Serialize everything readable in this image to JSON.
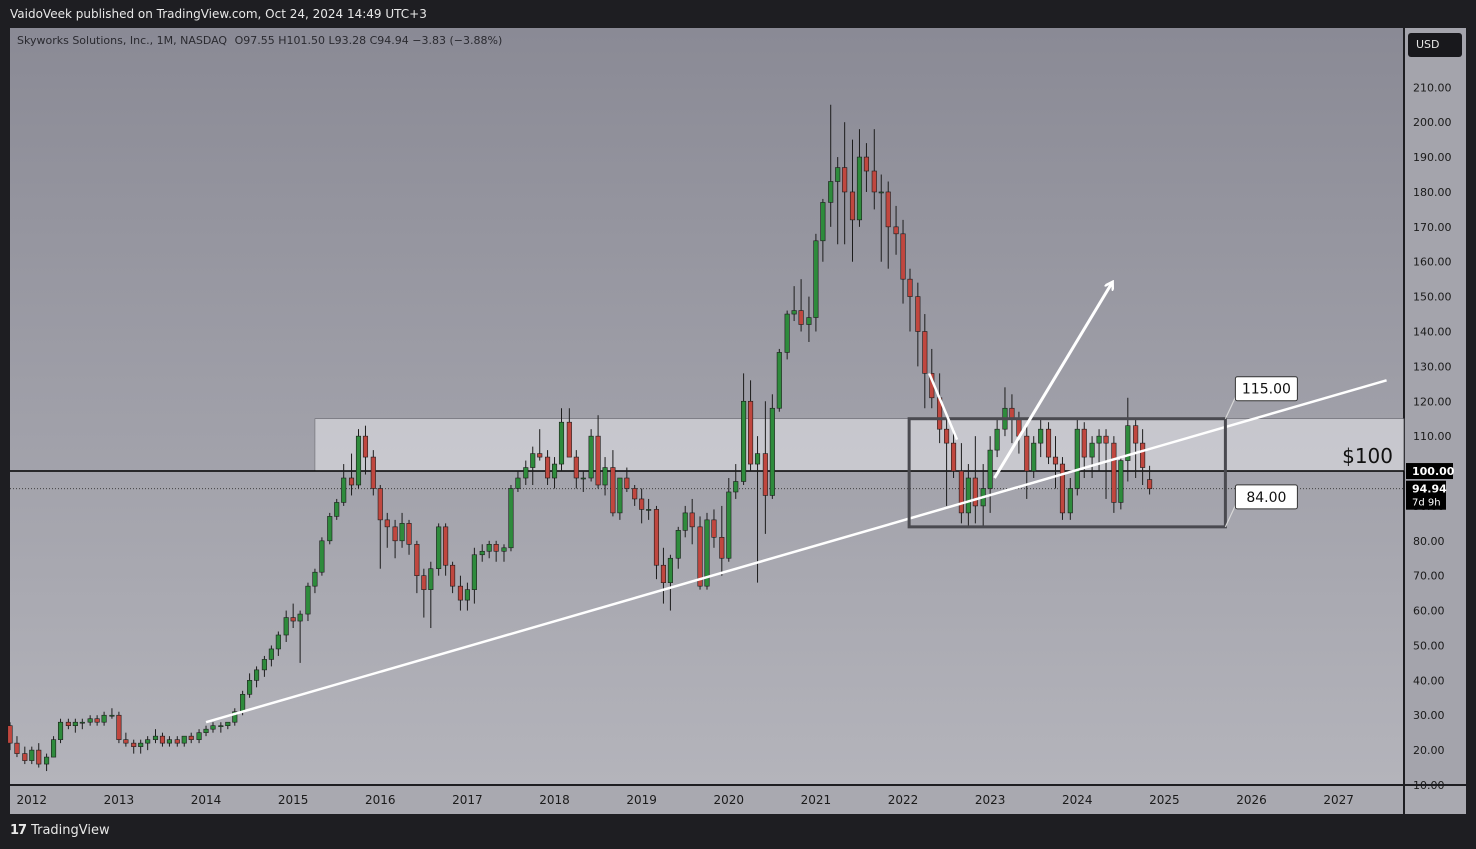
{
  "header": {
    "published_text": "VaidoVeek published on TradingView.com, Oct 24, 2024 14:49 UTC+3"
  },
  "footer": {
    "logo_mark": "17",
    "logo_text": "TradingView"
  },
  "currency_button": "USD",
  "legend": {
    "symbol": "Skyworks Solutions, Inc., 1M, NASDAQ",
    "ohlc_text": "O97.55  H101.50  L93.28  C94.94  −3.83 (−3.88%)"
  },
  "colors": {
    "up": "#2e8b3c",
    "down": "#c0473f",
    "background_top": "#8a8a95",
    "background_bottom": "#b4b4bb",
    "frame": "#1e1e22",
    "annotation": "#ffffff",
    "level_line": "#000000",
    "range_box": "#4a4a50"
  },
  "chart_data": {
    "type": "candlestick",
    "ylim": [
      10,
      227
    ],
    "xlim": [
      2011.75,
      2027.75
    ],
    "y_ticks": [
      "210.00",
      "200.00",
      "190.00",
      "180.00",
      "170.00",
      "160.00",
      "150.00",
      "140.00",
      "130.00",
      "120.00",
      "110.00",
      "100.00",
      "90.00",
      "80.00",
      "70.00",
      "60.00",
      "50.00",
      "40.00",
      "30.00",
      "20.00",
      "10.00"
    ],
    "x_ticks": [
      "2012",
      "2013",
      "2014",
      "2015",
      "2016",
      "2017",
      "2018",
      "2019",
      "2020",
      "2021",
      "2022",
      "2023",
      "2024",
      "2025",
      "2026",
      "2027"
    ],
    "series": [
      {
        "values": [
          [
            2011.75,
            27,
            28,
            20,
            22
          ],
          [
            2011.83,
            22,
            24,
            18,
            19
          ],
          [
            2011.92,
            19,
            21,
            16,
            17
          ],
          [
            2012.0,
            17,
            21,
            16,
            20
          ],
          [
            2012.08,
            20,
            22,
            15,
            16
          ],
          [
            2012.17,
            16,
            19,
            14,
            18
          ],
          [
            2012.25,
            18,
            24,
            18,
            23
          ],
          [
            2012.33,
            23,
            29,
            22,
            28
          ],
          [
            2012.42,
            28,
            29,
            26,
            27
          ],
          [
            2012.5,
            27,
            29,
            25,
            28
          ],
          [
            2012.58,
            28,
            29,
            26,
            28
          ],
          [
            2012.67,
            28,
            30,
            27,
            29
          ],
          [
            2012.75,
            29,
            30,
            27,
            28
          ],
          [
            2012.83,
            28,
            31,
            27,
            30
          ],
          [
            2012.92,
            30,
            32,
            29,
            30
          ],
          [
            2013.0,
            30,
            31,
            22,
            23
          ],
          [
            2013.08,
            23,
            25,
            21,
            22
          ],
          [
            2013.17,
            22,
            23,
            19,
            21
          ],
          [
            2013.25,
            21,
            23,
            19,
            22
          ],
          [
            2013.33,
            22,
            24,
            20,
            23
          ],
          [
            2013.42,
            23,
            26,
            22,
            24
          ],
          [
            2013.5,
            24,
            25,
            21,
            22
          ],
          [
            2013.58,
            22,
            24,
            21,
            23
          ],
          [
            2013.67,
            23,
            24,
            21,
            22
          ],
          [
            2013.75,
            22,
            24,
            21,
            24
          ],
          [
            2013.83,
            24,
            25,
            22,
            23
          ],
          [
            2013.92,
            23,
            26,
            22,
            25
          ],
          [
            2014.0,
            25,
            27,
            24,
            26
          ],
          [
            2014.08,
            26,
            28,
            25,
            27
          ],
          [
            2014.17,
            27,
            28,
            25,
            27
          ],
          [
            2014.25,
            27,
            28,
            26,
            28
          ],
          [
            2014.33,
            28,
            32,
            27,
            31
          ],
          [
            2014.42,
            31,
            37,
            30,
            36
          ],
          [
            2014.5,
            36,
            42,
            35,
            40
          ],
          [
            2014.58,
            40,
            44,
            38,
            43
          ],
          [
            2014.67,
            43,
            47,
            41,
            46
          ],
          [
            2014.75,
            46,
            50,
            44,
            49
          ],
          [
            2014.83,
            49,
            54,
            47,
            53
          ],
          [
            2014.92,
            53,
            60,
            51,
            58
          ],
          [
            2015.0,
            58,
            62,
            55,
            57
          ],
          [
            2015.08,
            57,
            60,
            45,
            59
          ],
          [
            2015.17,
            59,
            68,
            57,
            67
          ],
          [
            2015.25,
            67,
            72,
            65,
            71
          ],
          [
            2015.33,
            71,
            81,
            70,
            80
          ],
          [
            2015.42,
            80,
            88,
            79,
            87
          ],
          [
            2015.5,
            87,
            92,
            86,
            91
          ],
          [
            2015.58,
            91,
            102,
            90,
            98
          ],
          [
            2015.67,
            98,
            105,
            93,
            96
          ],
          [
            2015.75,
            96,
            112,
            95,
            110
          ],
          [
            2015.83,
            110,
            113,
            99,
            104
          ],
          [
            2015.92,
            104,
            106,
            93,
            95
          ],
          [
            2016.0,
            95,
            96,
            72,
            86
          ],
          [
            2016.08,
            86,
            88,
            78,
            84
          ],
          [
            2016.17,
            84,
            86,
            75,
            80
          ],
          [
            2016.25,
            80,
            88,
            78,
            85
          ],
          [
            2016.33,
            85,
            86,
            76,
            79
          ],
          [
            2016.42,
            79,
            80,
            65,
            70
          ],
          [
            2016.5,
            70,
            72,
            58,
            66
          ],
          [
            2016.58,
            66,
            74,
            55,
            72
          ],
          [
            2016.67,
            72,
            85,
            70,
            84
          ],
          [
            2016.75,
            84,
            85,
            70,
            73
          ],
          [
            2016.83,
            73,
            74,
            65,
            67
          ],
          [
            2016.92,
            67,
            70,
            60,
            63
          ],
          [
            2017.0,
            63,
            68,
            60,
            66
          ],
          [
            2017.08,
            66,
            78,
            62,
            76
          ],
          [
            2017.17,
            76,
            79,
            74,
            77
          ],
          [
            2017.25,
            77,
            80,
            75,
            79
          ],
          [
            2017.33,
            79,
            80,
            74,
            77
          ],
          [
            2017.42,
            77,
            79,
            74,
            78
          ],
          [
            2017.5,
            78,
            96,
            77,
            95
          ],
          [
            2017.58,
            95,
            100,
            94,
            98
          ],
          [
            2017.67,
            98,
            103,
            96,
            101
          ],
          [
            2017.75,
            101,
            107,
            96,
            105
          ],
          [
            2017.83,
            105,
            112,
            103,
            104
          ],
          [
            2017.92,
            104,
            106,
            96,
            98
          ],
          [
            2018.0,
            98,
            104,
            95,
            102
          ],
          [
            2018.08,
            102,
            118,
            100,
            114
          ],
          [
            2018.17,
            114,
            118,
            106,
            104
          ],
          [
            2018.25,
            104,
            106,
            95,
            98
          ],
          [
            2018.33,
            98,
            100,
            94,
            98
          ],
          [
            2018.42,
            98,
            112,
            97,
            110
          ],
          [
            2018.5,
            110,
            116,
            95,
            96
          ],
          [
            2018.58,
            96,
            104,
            93,
            101
          ],
          [
            2018.67,
            101,
            106,
            87,
            88
          ],
          [
            2018.75,
            88,
            98,
            86,
            98
          ],
          [
            2018.83,
            98,
            101,
            94,
            95
          ],
          [
            2018.92,
            95,
            96,
            90,
            92
          ],
          [
            2019.0,
            92,
            95,
            85,
            89
          ],
          [
            2019.08,
            89,
            92,
            86,
            89
          ],
          [
            2019.17,
            89,
            90,
            69,
            73
          ],
          [
            2019.25,
            73,
            78,
            62,
            68
          ],
          [
            2019.33,
            68,
            76,
            60,
            75
          ],
          [
            2019.42,
            75,
            84,
            72,
            83
          ],
          [
            2019.5,
            83,
            90,
            81,
            88
          ],
          [
            2019.58,
            88,
            92,
            79,
            84
          ],
          [
            2019.67,
            84,
            87,
            66,
            67
          ],
          [
            2019.75,
            67,
            88,
            66,
            86
          ],
          [
            2019.83,
            86,
            89,
            78,
            81
          ],
          [
            2019.92,
            81,
            90,
            70,
            75
          ],
          [
            2020.0,
            75,
            98,
            74,
            94
          ],
          [
            2020.08,
            94,
            102,
            92,
            97
          ],
          [
            2020.17,
            97,
            128,
            96,
            120
          ],
          [
            2020.25,
            120,
            126,
            100,
            102
          ],
          [
            2020.33,
            102,
            110,
            68,
            105
          ],
          [
            2020.42,
            105,
            120,
            82,
            93
          ],
          [
            2020.5,
            93,
            122,
            92,
            118
          ],
          [
            2020.58,
            118,
            135,
            117,
            134
          ],
          [
            2020.67,
            134,
            146,
            132,
            145
          ],
          [
            2020.75,
            145,
            153,
            143,
            146
          ],
          [
            2020.83,
            146,
            155,
            140,
            142
          ],
          [
            2020.92,
            142,
            150,
            137,
            144
          ],
          [
            2021.0,
            144,
            168,
            140,
            166
          ],
          [
            2021.08,
            166,
            178,
            160,
            177
          ],
          [
            2021.17,
            177,
            205,
            170,
            183
          ],
          [
            2021.25,
            183,
            190,
            165,
            187
          ],
          [
            2021.33,
            187,
            200,
            165,
            180
          ],
          [
            2021.42,
            180,
            195,
            160,
            172
          ],
          [
            2021.5,
            172,
            198,
            170,
            190
          ],
          [
            2021.58,
            190,
            194,
            180,
            186
          ],
          [
            2021.67,
            186,
            198,
            175,
            180
          ],
          [
            2021.75,
            180,
            185,
            160,
            180
          ],
          [
            2021.83,
            180,
            183,
            158,
            170
          ],
          [
            2021.92,
            170,
            176,
            162,
            168
          ],
          [
            2022.0,
            168,
            172,
            148,
            155
          ],
          [
            2022.08,
            155,
            158,
            140,
            150
          ],
          [
            2022.17,
            150,
            154,
            130,
            140
          ],
          [
            2022.25,
            140,
            145,
            118,
            128
          ],
          [
            2022.33,
            128,
            135,
            118,
            121
          ],
          [
            2022.42,
            121,
            128,
            108,
            112
          ],
          [
            2022.5,
            112,
            116,
            90,
            108
          ],
          [
            2022.58,
            108,
            112,
            98,
            100
          ],
          [
            2022.67,
            100,
            108,
            85,
            88
          ],
          [
            2022.75,
            88,
            102,
            84,
            98
          ],
          [
            2022.83,
            98,
            110,
            85,
            90
          ],
          [
            2022.92,
            90,
            102,
            84,
            95
          ],
          [
            2023.0,
            95,
            110,
            88,
            106
          ],
          [
            2023.08,
            106,
            115,
            104,
            112
          ],
          [
            2023.17,
            112,
            124,
            110,
            118
          ],
          [
            2023.25,
            118,
            122,
            108,
            115
          ],
          [
            2023.33,
            115,
            117,
            105,
            110
          ],
          [
            2023.42,
            110,
            113,
            92,
            100
          ],
          [
            2023.5,
            100,
            110,
            98,
            108
          ],
          [
            2023.58,
            108,
            115,
            104,
            112
          ],
          [
            2023.67,
            112,
            114,
            102,
            104
          ],
          [
            2023.75,
            104,
            110,
            95,
            102
          ],
          [
            2023.83,
            102,
            104,
            86,
            88
          ],
          [
            2023.92,
            88,
            98,
            86,
            95
          ],
          [
            2024.0,
            95,
            115,
            93,
            112
          ],
          [
            2024.08,
            112,
            114,
            98,
            104
          ],
          [
            2024.17,
            104,
            110,
            98,
            108
          ],
          [
            2024.25,
            108,
            112,
            100,
            110
          ],
          [
            2024.33,
            110,
            112,
            92,
            108
          ],
          [
            2024.42,
            108,
            110,
            88,
            91
          ],
          [
            2024.5,
            91,
            104,
            89,
            103
          ],
          [
            2024.58,
            103,
            121,
            97,
            113
          ],
          [
            2024.67,
            113,
            115,
            98,
            108
          ],
          [
            2024.75,
            108,
            112,
            96,
            101
          ],
          [
            2024.83,
            97.55,
            101.5,
            93.28,
            94.94
          ]
        ]
      }
    ]
  },
  "annotations": {
    "level_label": "$100",
    "level_value": 100,
    "price_tag": "100.00",
    "current_price": "94.94",
    "countdown": "7d 9h",
    "current_value": 94.94,
    "box_top_label": "115.00",
    "box_bottom_label": "84.00",
    "zone_top": 115,
    "zone_bottom": 100,
    "zone_x_start": 2015.25,
    "box_x_start": 2022.07,
    "box_x_end": 2025.7,
    "box_top": 115,
    "box_bottom": 84,
    "trendline": [
      [
        2014.0,
        28
      ],
      [
        2027.55,
        126
      ]
    ],
    "arrow_down": [
      [
        2022.3,
        128
      ],
      [
        2022.62,
        109
      ]
    ],
    "arrow_up": [
      [
        2023.05,
        98
      ],
      [
        2024.4,
        154
      ]
    ]
  }
}
